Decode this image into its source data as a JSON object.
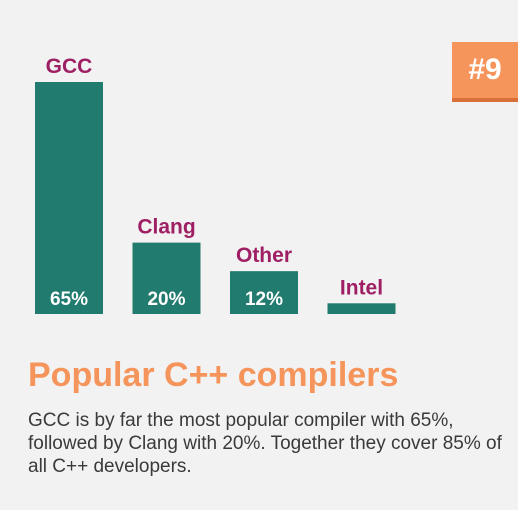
{
  "badge": {
    "label": "#9"
  },
  "colors": {
    "bar": "#227b6f",
    "category_label": "#9e1f63",
    "value_label": "#ffffff",
    "accent": "#f6955b",
    "text": "#3a3a3a",
    "background": "#f2f2f2"
  },
  "title": "Popular C++ compilers",
  "description": "GCC is by far the most popular compiler with 65%, followed by Clang with 20%. Together they cover 85% of all C++ developers.",
  "chart_data": {
    "type": "bar",
    "categories": [
      "GCC",
      "Clang",
      "Other",
      "Intel"
    ],
    "values": [
      65,
      20,
      12,
      3
    ],
    "value_labels": [
      "65%",
      "20%",
      "12%",
      ""
    ],
    "title": "",
    "xlabel": "",
    "ylabel": "",
    "ylim": [
      0,
      65
    ],
    "grid": false,
    "legend": "none"
  }
}
